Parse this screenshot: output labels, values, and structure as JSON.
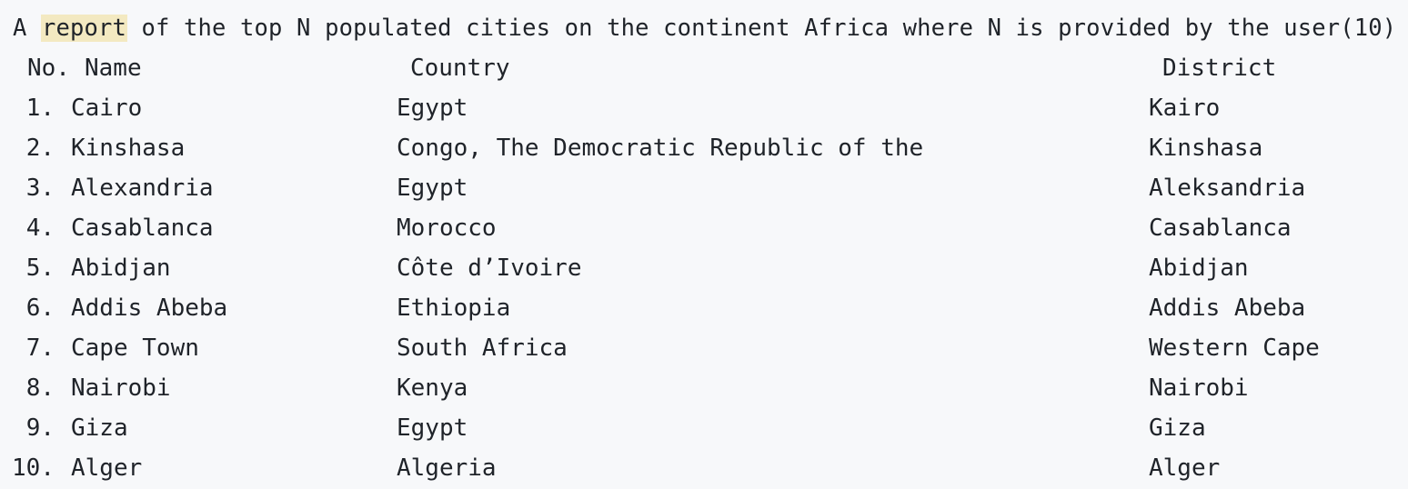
{
  "heading": {
    "prefix": "A ",
    "highlighted": "report",
    "suffix": " of the top N populated cities on the continent Africa where N is provided by the user(10)"
  },
  "columns": {
    "no": "No.",
    "name": "Name",
    "country": "Country",
    "district": "District"
  },
  "rows": [
    {
      "no": "1.",
      "name": "Cairo",
      "country": "Egypt",
      "district": "Kairo"
    },
    {
      "no": "2.",
      "name": "Kinshasa",
      "country": "Congo, The Democratic Republic of the",
      "district": "Kinshasa"
    },
    {
      "no": "3.",
      "name": "Alexandria",
      "country": "Egypt",
      "district": "Aleksandria"
    },
    {
      "no": "4.",
      "name": "Casablanca",
      "country": "Morocco",
      "district": "Casablanca"
    },
    {
      "no": "5.",
      "name": "Abidjan",
      "country": "Côte d’Ivoire",
      "district": "Abidjan"
    },
    {
      "no": "6.",
      "name": "Addis Abeba",
      "country": "Ethiopia",
      "district": "Addis Abeba"
    },
    {
      "no": "7.",
      "name": "Cape Town",
      "country": "South Africa",
      "district": "Western Cape"
    },
    {
      "no": "8.",
      "name": "Nairobi",
      "country": "Kenya",
      "district": "Nairobi"
    },
    {
      "no": "9.",
      "name": "Giza",
      "country": "Egypt",
      "district": "Giza"
    },
    {
      "no": "10.",
      "name": "Alger",
      "country": "Algeria",
      "district": "Alger"
    }
  ],
  "colors": {
    "background": "#f7f8fa",
    "text": "#1f2329",
    "highlight": "#f3e9c1"
  }
}
